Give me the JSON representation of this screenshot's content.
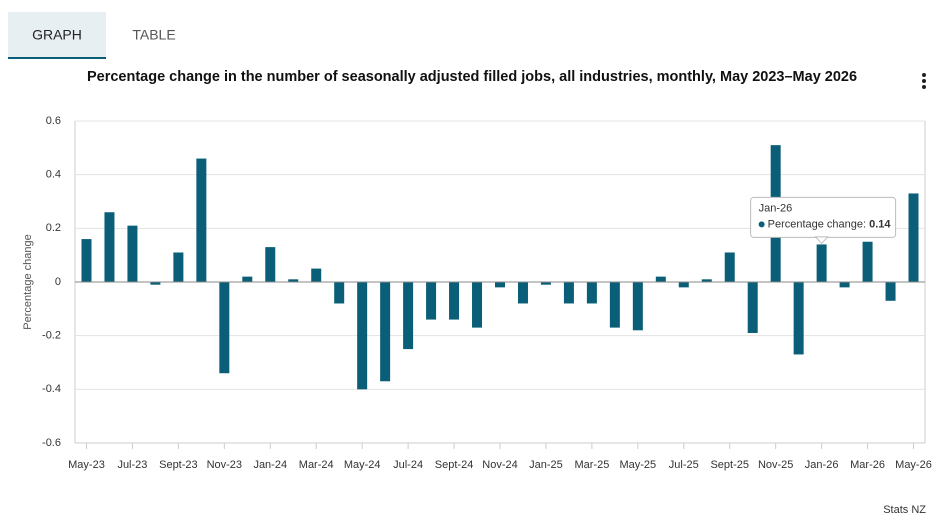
{
  "tabs": [
    "GRAPH",
    "TABLE"
  ],
  "source": "Stats NZ",
  "chart_data": {
    "type": "bar",
    "title": "Percentage change in the number of seasonally adjusted filled jobs, all industries, monthly, May 2023–May 2026",
    "y_label": "Percentage change",
    "categories": [
      "May-23",
      null,
      "Jul-23",
      null,
      "Sept-23",
      null,
      "Nov-23",
      null,
      "Jan-24",
      null,
      "Mar-24",
      null,
      "May-24",
      null,
      "Jul-24",
      null,
      "Sept-24",
      null,
      "Nov-24",
      null,
      "Jan-25",
      null,
      "Mar-25",
      null,
      "May-25",
      null,
      "Jul-25",
      null,
      "Sept-25",
      null,
      "Nov-25",
      null,
      "Jan-26",
      null,
      "Mar-26",
      null,
      "May-26"
    ],
    "series": [
      {
        "name": "Percentage change",
        "color": "#0b5e77",
        "values": [
          0.16,
          0.26,
          0.21,
          -0.01,
          0.11,
          0.46,
          -0.34,
          0.02,
          0.13,
          0.01,
          0.05,
          -0.08,
          -0.4,
          -0.37,
          -0.25,
          -0.14,
          -0.14,
          -0.17,
          -0.02,
          -0.08,
          -0.01,
          -0.08,
          -0.08,
          -0.17,
          -0.18,
          0.02,
          -0.02,
          0.01,
          0.11,
          -0.19,
          0.51,
          -0.27,
          0.14,
          -0.02,
          0.15,
          -0.07,
          0.33
        ]
      }
    ],
    "ylim": [
      -0.6,
      0.6
    ],
    "yticks": [
      -0.6,
      -0.4,
      -0.2,
      0,
      0.2,
      0.4,
      0.6
    ],
    "grid": true,
    "tooltip": {
      "index": 32,
      "label": "Percentage change:"
    }
  }
}
